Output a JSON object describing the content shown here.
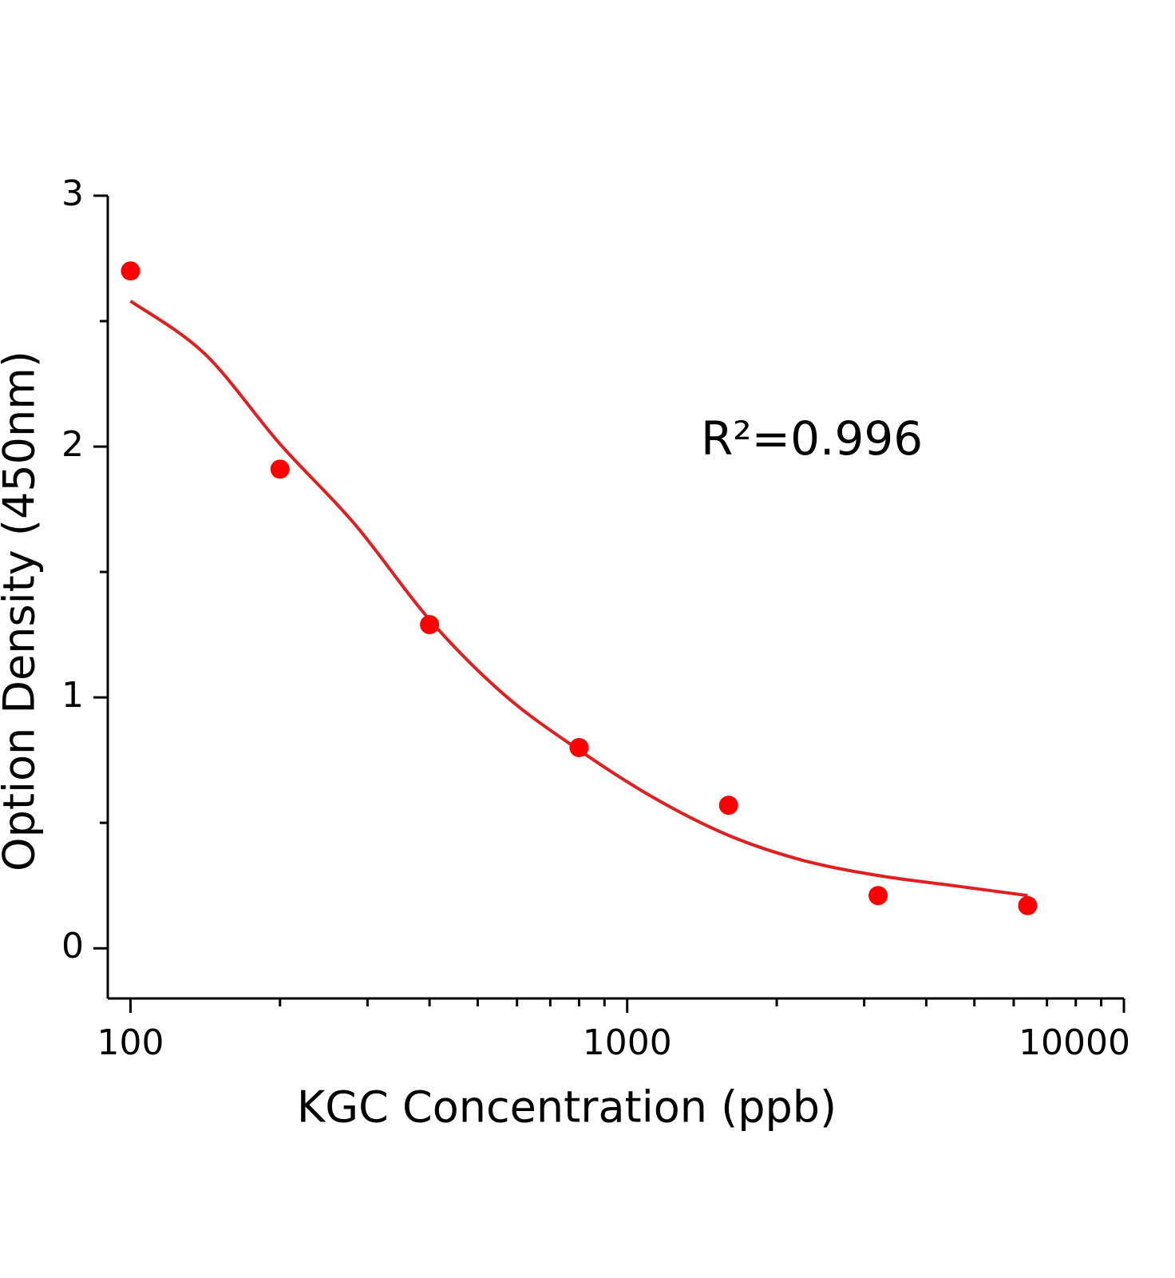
{
  "chart_data": {
    "type": "scatter",
    "x_label": "KGC Concentration (ppb)",
    "y_label": "Option Density (450nm)",
    "annotation": "R²=0.996",
    "x_scale": "log",
    "xlim": [
      90,
      10000
    ],
    "xticks": [
      100,
      1000,
      10000
    ],
    "xminorticks": [
      200,
      300,
      400,
      500,
      600,
      700,
      800,
      900,
      2000,
      3000,
      4000,
      5000,
      6000,
      7000,
      8000,
      9000
    ],
    "ylim": [
      -0.2,
      3
    ],
    "yticks": [
      0,
      1,
      2,
      3
    ],
    "yminorticks": [
      0.5,
      1.5,
      2.5
    ],
    "color": "#ff0000",
    "x": [
      100,
      200,
      400,
      800,
      1600,
      3200,
      6400
    ],
    "values": [
      2.7,
      1.91,
      1.29,
      0.8,
      0.57,
      0.21,
      0.17
    ],
    "fit": {
      "color": "#e02020",
      "x": [
        100,
        141,
        200,
        283,
        400,
        566,
        800,
        1131,
        1600,
        2263,
        3200,
        4525,
        6400
      ],
      "values": [
        2.58,
        2.37,
        2.01,
        1.69,
        1.31,
        1.01,
        0.79,
        0.6,
        0.45,
        0.35,
        0.29,
        0.25,
        0.21
      ]
    }
  }
}
